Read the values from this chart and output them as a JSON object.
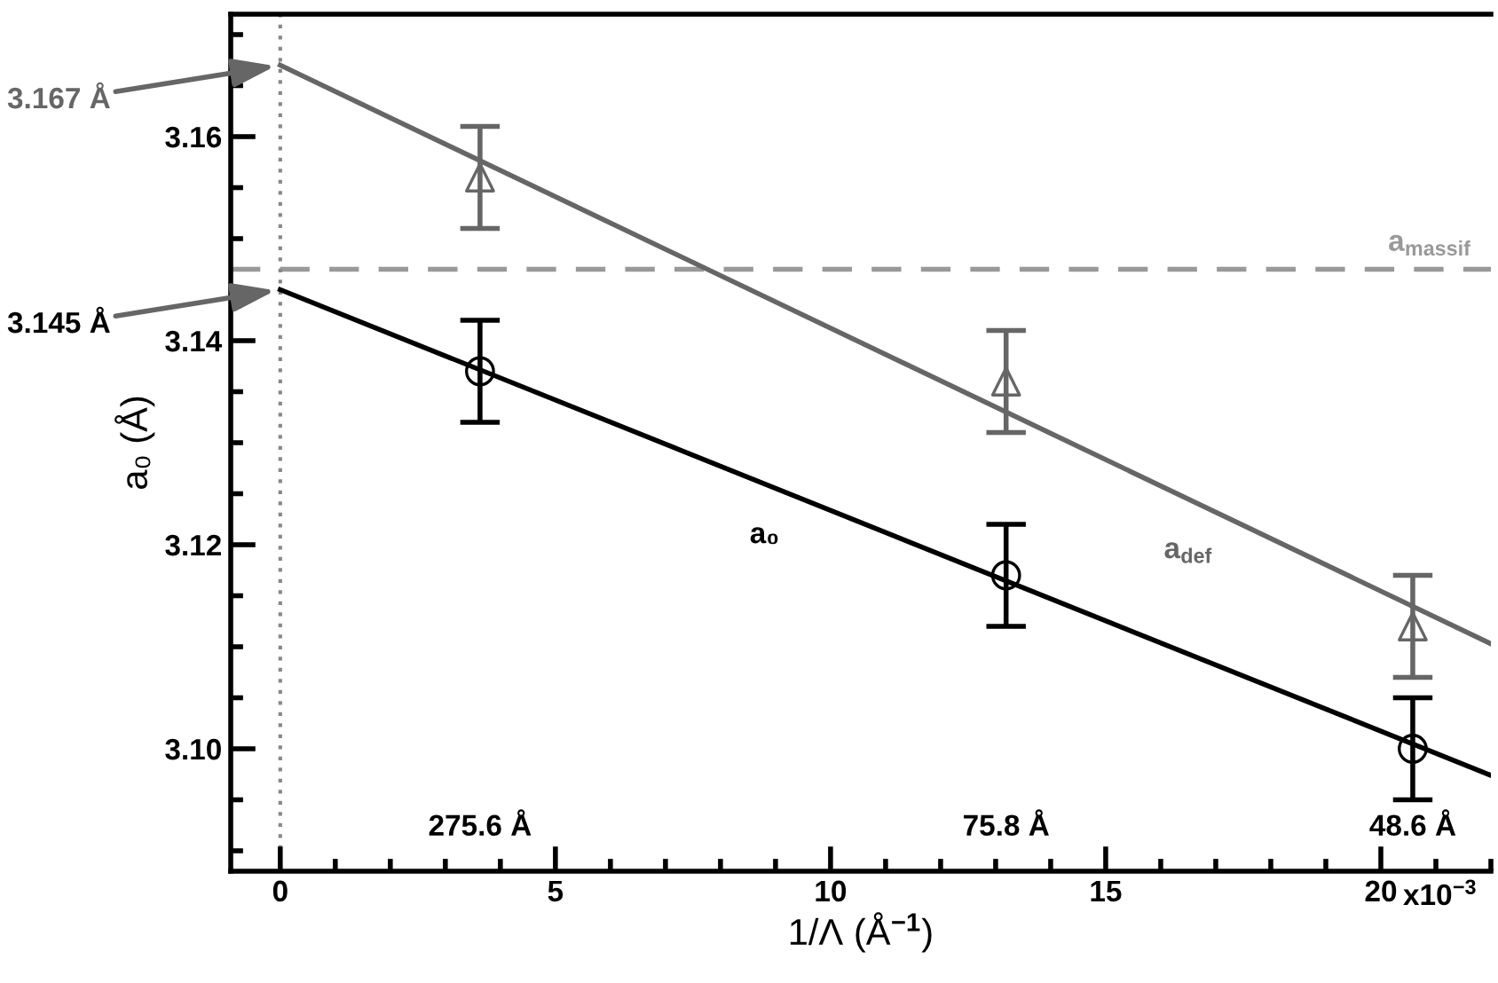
{
  "chart_data": {
    "type": "scatter",
    "xlabel": "1/Λ (Å$^{−1}$)",
    "ylabel": "a₀ (Å)",
    "xlim": [
      -0.9,
      22
    ],
    "ylim": [
      3.088,
      3.172
    ],
    "xticks": [
      0,
      5,
      10,
      15,
      20
    ],
    "yticks": [
      {
        "value": 3.1,
        "label": "3.10"
      },
      {
        "value": 3.12,
        "label": "3.12"
      },
      {
        "value": 3.14,
        "label": "3.14"
      },
      {
        "value": 3.16,
        "label": "3.16"
      }
    ],
    "grid": false,
    "legend": false,
    "series": [
      {
        "color": "#000000",
        "marker": "circle",
        "x": [
          3.63,
          13.19,
          20.58
        ],
        "values": [
          3.137,
          3.117,
          3.1
        ],
        "errors": [
          0.005,
          0.005,
          0.005
        ]
      },
      {
        "color": "#666666",
        "marker": "triangle",
        "x": [
          3.63,
          13.19,
          20.58
        ],
        "values": [
          3.156,
          3.136,
          3.112
        ],
        "errors": [
          0.005,
          0.005,
          0.005
        ]
      },
      {
        "type": "line",
        "name": "a₀",
        "color": "#000000",
        "line_style": "solid",
        "marker": "none",
        "x": [
          0,
          22
        ],
        "values": [
          3.145,
          3.0974
        ]
      },
      {
        "type": "line",
        "name": "a$_{def}$",
        "color": "#666666",
        "line_style": "solid",
        "marker": "none",
        "x": [
          0,
          22
        ],
        "values": [
          3.167,
          3.1103
        ]
      }
    ],
    "ref_lines": [
      {
        "axis": "y",
        "value": 3.147,
        "label": "a$_{massif}$",
        "color": "#999999",
        "line_style": "dashed"
      },
      {
        "axis": "x",
        "value": 0,
        "color": "#888888",
        "line_style": "dotted"
      }
    ],
    "annotations": [
      {
        "text": "3.167 Å",
        "x": 0,
        "y": 3.167
      },
      {
        "text": "3.145 Å",
        "x": 0,
        "y": 3.145
      },
      "275.6 Å",
      "75.8 Å",
      "48.6 Å",
      "x10$^{−3}$"
    ]
  }
}
